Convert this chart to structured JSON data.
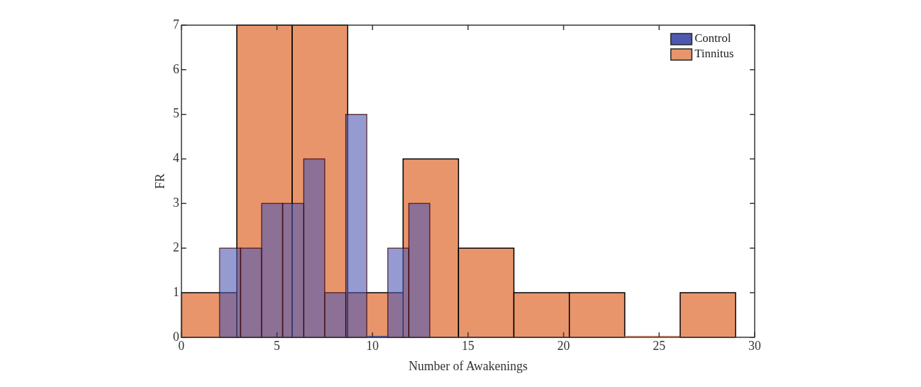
{
  "chart_data": {
    "type": "histogram",
    "xlabel": "Number of Awakenings",
    "ylabel": "FR",
    "xlim": [
      0,
      30
    ],
    "xticks": [
      0,
      5,
      10,
      15,
      20,
      25,
      30
    ],
    "ylim": [
      0,
      7
    ],
    "yticks": [
      0,
      1,
      2,
      3,
      4,
      5,
      6,
      7
    ],
    "legend": "top right",
    "bins": [
      0,
      2.9,
      5.8,
      8.7,
      11.6,
      14.5,
      17.4,
      20.3,
      23.2,
      26.1,
      29
    ],
    "series": [
      {
        "name": "Control",
        "color": "#4f58b0",
        "bins": [
          2,
          3.1,
          4.2,
          5.3,
          6.4,
          7.5,
          8.6,
          9.7,
          10.8,
          11.9,
          13
        ],
        "values": [
          2,
          2,
          3,
          3,
          4,
          1,
          5,
          0,
          2,
          3
        ]
      },
      {
        "name": "Tinnitus",
        "color": "#e8956c",
        "values": [
          1,
          7,
          7,
          1,
          4,
          2,
          1,
          1,
          0,
          1
        ]
      }
    ]
  }
}
